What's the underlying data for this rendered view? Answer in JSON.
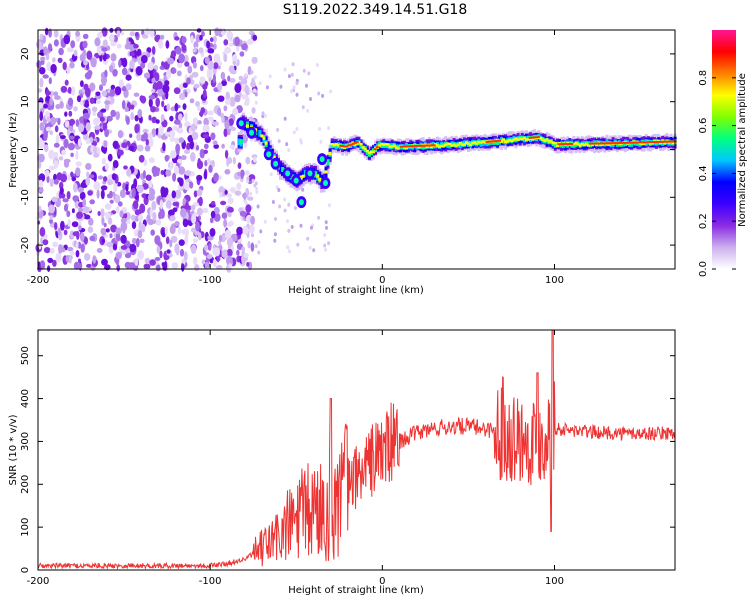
{
  "title": "S119.2022.349.14.51.G18",
  "chart_data": [
    {
      "type": "heatmap",
      "xlabel": "Height of straight line (km)",
      "ylabel": "Frequency (Hz)",
      "xlim": [
        -200,
        170
      ],
      "ylim": [
        -25,
        25
      ],
      "xticks": [
        -200,
        -100,
        0,
        100
      ],
      "yticks": [
        -20,
        -10,
        0,
        10,
        20
      ],
      "colorbar": {
        "label": "Normalized spectral amplitude",
        "range": [
          0,
          1
        ],
        "ticks": [
          0.0,
          0.2,
          0.4,
          0.6,
          0.8
        ],
        "colormap": [
          "#ffffff",
          "#ccb0ee",
          "#8a2be2",
          "#3b00ff",
          "#0000ff",
          "#00c8ff",
          "#00ff80",
          "#7fff00",
          "#ffff00",
          "#ff7f00",
          "#ff0000",
          "#ff1493"
        ]
      },
      "features": {
        "noise_region_x": [
          -200,
          -80
        ],
        "signal_track": [
          {
            "x": -82,
            "y": 5.5
          },
          {
            "x": -75,
            "y": 4
          },
          {
            "x": -70,
            "y": 2.5
          },
          {
            "x": -65,
            "y": -1
          },
          {
            "x": -60,
            "y": -4
          },
          {
            "x": -55,
            "y": -5.5
          },
          {
            "x": -50,
            "y": -6.5
          },
          {
            "x": -45,
            "y": -5
          },
          {
            "x": -40,
            "y": -5
          },
          {
            "x": -35,
            "y": -7
          },
          {
            "x": -30,
            "y": 1
          },
          {
            "x": -22,
            "y": 0.5
          },
          {
            "x": -15,
            "y": 1.5
          },
          {
            "x": -8,
            "y": -1
          },
          {
            "x": -2,
            "y": 1
          },
          {
            "x": 10,
            "y": 0.5
          },
          {
            "x": 30,
            "y": 0.8
          },
          {
            "x": 60,
            "y": 1.5
          },
          {
            "x": 90,
            "y": 2.5
          },
          {
            "x": 100,
            "y": 1
          },
          {
            "x": 130,
            "y": 1.2
          },
          {
            "x": 170,
            "y": 1.6
          }
        ]
      }
    },
    {
      "type": "line",
      "xlabel": "Height of straight line (km)",
      "ylabel": "SNR (10 * v/v)",
      "xlim": [
        -200,
        170
      ],
      "ylim": [
        0,
        560
      ],
      "xticks": [
        -200,
        -100,
        0,
        100
      ],
      "yticks": [
        0,
        100,
        200,
        300,
        400,
        500
      ],
      "color": "#ee3333",
      "envelope": {
        "x": [
          -200,
          -100,
          -90,
          -80,
          -70,
          -60,
          -50,
          -40,
          -30,
          -20,
          -10,
          0,
          10,
          20,
          30,
          40,
          50,
          60,
          70,
          80,
          90,
          100,
          110,
          130,
          150,
          170
        ],
        "y": [
          10,
          10,
          15,
          25,
          50,
          80,
          120,
          140,
          150,
          200,
          240,
          280,
          300,
          320,
          330,
          335,
          335,
          330,
          320,
          310,
          300,
          330,
          325,
          320,
          318,
          320
        ]
      },
      "spikes": [
        {
          "x": -30,
          "y": 400
        },
        {
          "x": 70,
          "y": 450
        },
        {
          "x": 90,
          "y": 460
        },
        {
          "x": 99,
          "y": 560
        }
      ]
    }
  ]
}
